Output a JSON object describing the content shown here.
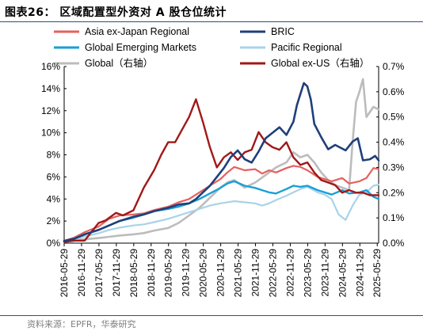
{
  "header": {
    "title": "图表26： 区域配置型外资对 A 股仓位统计"
  },
  "footer": {
    "source": "资料来源：EPFR，华泰研究"
  },
  "colors": {
    "asia_ex_japan": "#e4615f",
    "bric": "#1f3f7a",
    "gem": "#1a9fd8",
    "pacific": "#a8d3e8",
    "global": "#bcbcbc",
    "global_ex_us": "#a11818",
    "rule": "#2d4e87"
  },
  "chart_data": {
    "type": "line",
    "x_tick_labels": [
      "2016-05-29",
      "2016-11-29",
      "2017-05-29",
      "2017-11-29",
      "2018-05-29",
      "2018-11-29",
      "2019-05-29",
      "2019-11-29",
      "2020-05-29",
      "2020-11-29",
      "2021-05-29",
      "2021-11-29",
      "2022-05-29",
      "2022-11-29",
      "2023-05-29",
      "2023-11-29",
      "2024-05-29",
      "2024-11-29",
      "2025-05-29"
    ],
    "y_left": {
      "ticks": [
        "0%",
        "2%",
        "4%",
        "6%",
        "8%",
        "10%",
        "12%",
        "14%",
        "16%"
      ],
      "range": [
        0,
        16
      ]
    },
    "y_right": {
      "ticks": [
        "0.0%",
        "0.1%",
        "0.2%",
        "0.3%",
        "0.4%",
        "0.5%",
        "0.6%",
        "0.7%"
      ],
      "range": [
        0,
        0.7
      ]
    },
    "legend": [
      {
        "key": "asia_ex_japan",
        "label": "Asia ex-Japan Regional"
      },
      {
        "key": "bric",
        "label": "BRIC"
      },
      {
        "key": "gem",
        "label": "Global Emerging Markets"
      },
      {
        "key": "pacific",
        "label": "Pacific Regional"
      },
      {
        "key": "global",
        "label": "Global（右轴）"
      },
      {
        "key": "global_ex_us",
        "label": "Global ex-US（右轴）"
      }
    ],
    "series": [
      {
        "key": "asia_ex_japan",
        "name": "Asia ex-Japan Regional",
        "axis": "left",
        "x": [
          2016.41,
          2016.7,
          2017.0,
          2017.4,
          2017.7,
          2018.0,
          2018.4,
          2018.7,
          2019.0,
          2019.4,
          2019.7,
          2020.0,
          2020.3,
          2020.6,
          2020.9,
          2021.1,
          2021.3,
          2021.6,
          2021.9,
          2022.1,
          2022.3,
          2022.5,
          2022.8,
          2023.0,
          2023.2,
          2023.4,
          2023.7,
          2023.9,
          2024.1,
          2024.4,
          2024.6,
          2024.9,
          2025.1,
          2025.3,
          2025.45
        ],
        "values": [
          0.2,
          0.5,
          1.0,
          1.5,
          2.2,
          2.5,
          2.6,
          2.7,
          3.0,
          3.3,
          3.7,
          4.0,
          4.6,
          5.2,
          5.8,
          6.4,
          6.9,
          6.6,
          6.7,
          6.3,
          6.6,
          6.4,
          6.8,
          7.0,
          6.9,
          6.6,
          6.0,
          5.8,
          5.6,
          5.9,
          5.4,
          5.6,
          5.9,
          6.8,
          6.7
        ]
      },
      {
        "key": "bric",
        "name": "BRIC",
        "axis": "left",
        "x": [
          2016.41,
          2016.7,
          2017.0,
          2017.4,
          2017.7,
          2018.0,
          2018.4,
          2018.7,
          2019.0,
          2019.4,
          2019.7,
          2020.0,
          2020.2,
          2020.4,
          2020.6,
          2020.8,
          2021.0,
          2021.2,
          2021.4,
          2021.6,
          2021.8,
          2022.0,
          2022.2,
          2022.4,
          2022.6,
          2022.8,
          2023.0,
          2023.1,
          2023.2,
          2023.3,
          2023.4,
          2023.5,
          2023.6,
          2023.8,
          2024.0,
          2024.2,
          2024.5,
          2024.7,
          2024.85,
          2025.0,
          2025.2,
          2025.35,
          2025.45
        ],
        "values": [
          0.2,
          0.4,
          0.8,
          1.2,
          1.6,
          2.0,
          2.4,
          2.6,
          2.9,
          3.2,
          3.5,
          3.6,
          4.0,
          4.6,
          5.2,
          6.0,
          6.8,
          7.8,
          8.4,
          7.6,
          7.3,
          8.3,
          9.5,
          10.0,
          10.5,
          9.8,
          11.0,
          12.5,
          13.5,
          14.5,
          14.2,
          13.0,
          10.8,
          9.6,
          8.5,
          8.9,
          8.4,
          9.2,
          9.5,
          7.5,
          7.6,
          7.9,
          7.5
        ]
      },
      {
        "key": "gem",
        "name": "Global Emerging Markets",
        "axis": "left",
        "x": [
          2016.41,
          2016.7,
          2017.0,
          2017.4,
          2017.7,
          2018.0,
          2018.4,
          2018.7,
          2019.0,
          2019.4,
          2019.7,
          2020.0,
          2020.3,
          2020.6,
          2020.9,
          2021.1,
          2021.3,
          2021.6,
          2021.9,
          2022.1,
          2022.3,
          2022.5,
          2022.8,
          2023.0,
          2023.2,
          2023.4,
          2023.7,
          2023.9,
          2024.1,
          2024.4,
          2024.6,
          2024.9,
          2025.1,
          2025.3,
          2025.45
        ],
        "values": [
          0.2,
          0.4,
          0.8,
          1.2,
          1.6,
          2.0,
          2.3,
          2.6,
          2.9,
          3.1,
          3.3,
          3.6,
          4.0,
          4.5,
          5.0,
          5.4,
          5.6,
          5.2,
          5.0,
          4.8,
          4.6,
          4.5,
          4.9,
          5.2,
          5.1,
          5.2,
          4.8,
          4.6,
          4.4,
          4.8,
          4.5,
          4.6,
          4.8,
          4.2,
          4.0
        ]
      },
      {
        "key": "pacific",
        "name": "Pacific Regional",
        "axis": "left",
        "x": [
          2016.41,
          2016.7,
          2017.0,
          2017.4,
          2017.7,
          2018.0,
          2018.4,
          2018.7,
          2019.0,
          2019.4,
          2019.7,
          2020.0,
          2020.3,
          2020.6,
          2020.9,
          2021.1,
          2021.3,
          2021.6,
          2021.9,
          2022.1,
          2022.3,
          2022.5,
          2022.8,
          2023.0,
          2023.2,
          2023.4,
          2023.7,
          2023.9,
          2024.1,
          2024.3,
          2024.5,
          2024.7,
          2024.9,
          2025.1,
          2025.3,
          2025.45
        ],
        "values": [
          0.1,
          0.3,
          0.6,
          0.9,
          1.2,
          1.4,
          1.6,
          1.7,
          1.9,
          2.2,
          2.5,
          2.8,
          3.1,
          3.4,
          3.6,
          3.7,
          3.8,
          3.7,
          3.6,
          3.4,
          3.6,
          3.9,
          4.3,
          4.6,
          4.9,
          5.1,
          4.6,
          4.4,
          4.0,
          2.6,
          2.1,
          3.4,
          4.4,
          4.6,
          5.2,
          5.3
        ]
      },
      {
        "key": "global",
        "name": "Global（右轴）",
        "axis": "right",
        "x": [
          2016.41,
          2016.7,
          2017.0,
          2017.4,
          2017.7,
          2018.0,
          2018.4,
          2018.7,
          2019.0,
          2019.4,
          2019.7,
          2020.0,
          2020.3,
          2020.6,
          2020.9,
          2021.1,
          2021.3,
          2021.6,
          2021.9,
          2022.1,
          2022.3,
          2022.5,
          2022.8,
          2023.0,
          2023.2,
          2023.4,
          2023.6,
          2023.8,
          2024.0,
          2024.2,
          2024.4,
          2024.6,
          2024.7,
          2024.8,
          2024.9,
          2025.0,
          2025.1,
          2025.3,
          2025.45
        ],
        "values": [
          0.005,
          0.01,
          0.015,
          0.02,
          0.025,
          0.03,
          0.035,
          0.04,
          0.05,
          0.06,
          0.08,
          0.11,
          0.14,
          0.18,
          0.22,
          0.24,
          0.25,
          0.22,
          0.24,
          0.26,
          0.28,
          0.3,
          0.32,
          0.36,
          0.34,
          0.35,
          0.32,
          0.28,
          0.25,
          0.23,
          0.22,
          0.21,
          0.4,
          0.56,
          0.6,
          0.65,
          0.5,
          0.54,
          0.53
        ]
      },
      {
        "key": "global_ex_us",
        "name": "Global ex-US（右轴）",
        "axis": "right",
        "x": [
          2016.41,
          2016.7,
          2017.0,
          2017.4,
          2017.6,
          2017.7,
          2017.9,
          2018.1,
          2018.4,
          2018.7,
          2019.0,
          2019.2,
          2019.4,
          2019.6,
          2019.8,
          2020.0,
          2020.2,
          2020.4,
          2020.6,
          2020.8,
          2021.0,
          2021.2,
          2021.4,
          2021.6,
          2021.8,
          2022.0,
          2022.2,
          2022.4,
          2022.6,
          2022.8,
          2023.0,
          2023.2,
          2023.4,
          2023.6,
          2023.8,
          2024.0,
          2024.2,
          2024.4,
          2024.6,
          2024.8,
          2025.0,
          2025.2,
          2025.45
        ],
        "values": [
          0.005,
          0.01,
          0.01,
          0.08,
          0.09,
          0.1,
          0.12,
          0.11,
          0.13,
          0.22,
          0.29,
          0.35,
          0.4,
          0.4,
          0.45,
          0.5,
          0.57,
          0.48,
          0.38,
          0.3,
          0.34,
          0.36,
          0.33,
          0.36,
          0.37,
          0.44,
          0.4,
          0.38,
          0.37,
          0.4,
          0.34,
          0.31,
          0.32,
          0.28,
          0.25,
          0.24,
          0.23,
          0.2,
          0.21,
          0.2,
          0.2,
          0.19,
          0.19
        ]
      }
    ]
  }
}
